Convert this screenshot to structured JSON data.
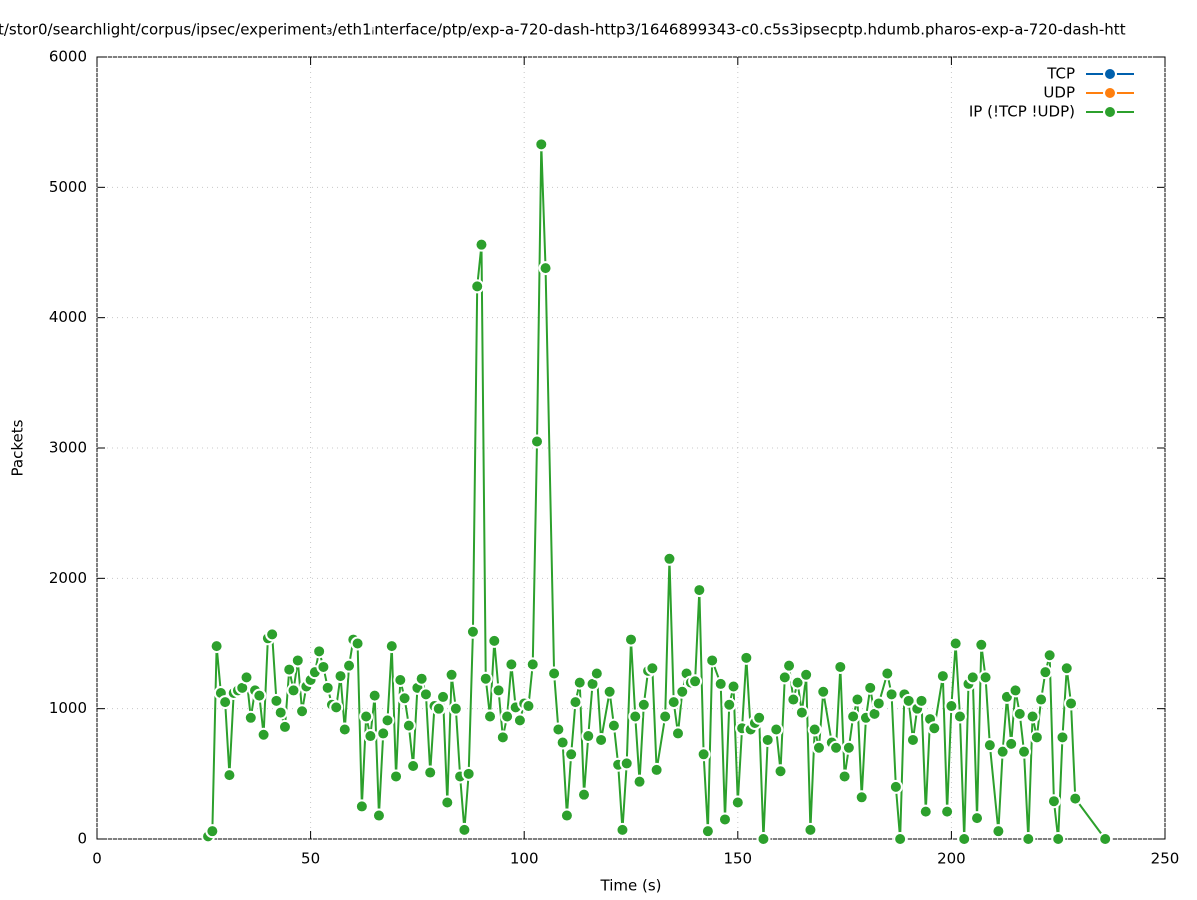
{
  "chart_data": {
    "type": "line",
    "title": "t/stor0/searchlight/corpus/ipsec/experiment₃/eth1ᵢnterface/ptp/exp-a-720-dash-http3/1646899343-c0.c5s3ipsecptp.hdumb.pharos-exp-a-720-dash-htt",
    "x_label": "Time (s)",
    "y_label": "Packets",
    "xlim": [
      0,
      250
    ],
    "xticks": [
      0,
      50,
      100,
      150,
      200,
      250
    ],
    "ylim": [
      0,
      6000
    ],
    "yticks": [
      0,
      1000,
      2000,
      3000,
      4000,
      5000,
      6000
    ],
    "grid": true,
    "legend": "top-right",
    "x": [
      26,
      27,
      28,
      29,
      30,
      31,
      32,
      33,
      34,
      35,
      36,
      37,
      38,
      39,
      40,
      41,
      42,
      43,
      44,
      45,
      46,
      47,
      48,
      49,
      50,
      51,
      52,
      53,
      54,
      55,
      56,
      57,
      58,
      59,
      60,
      61,
      62,
      63,
      64,
      65,
      66,
      67,
      68,
      69,
      70,
      71,
      72,
      73,
      74,
      75,
      76,
      77,
      78,
      79,
      80,
      81,
      82,
      83,
      84,
      85,
      86,
      87,
      88,
      89,
      90,
      91,
      92,
      93,
      94,
      95,
      96,
      97,
      98,
      99,
      100,
      101,
      102,
      103,
      104,
      105,
      107,
      108,
      109,
      110,
      111,
      112,
      113,
      114,
      115,
      116,
      117,
      118,
      120,
      121,
      122,
      123,
      124,
      125,
      126,
      127,
      128,
      129,
      130,
      131,
      133,
      134,
      135,
      136,
      137,
      138,
      139,
      140,
      141,
      142,
      143,
      144,
      146,
      147,
      148,
      149,
      150,
      151,
      152,
      153,
      154,
      155,
      156,
      157,
      159,
      160,
      161,
      162,
      163,
      164,
      165,
      166,
      167,
      168,
      169,
      170,
      172,
      173,
      174,
      175,
      176,
      177,
      178,
      179,
      180,
      181,
      182,
      183,
      185,
      186,
      187,
      188,
      189,
      190,
      191,
      192,
      193,
      194,
      195,
      196,
      198,
      199,
      200,
      201,
      202,
      203,
      204,
      205,
      206,
      207,
      208,
      209,
      211,
      212,
      213,
      214,
      215,
      216,
      217,
      218,
      219,
      220,
      221,
      222,
      223,
      224,
      225,
      226,
      227,
      228,
      229,
      236
    ],
    "series": [
      {
        "name": "TCP",
        "color": "#0060ad"
      },
      {
        "name": "UDP",
        "color": "#ff7f0e"
      },
      {
        "name": "IP (!TCP  !UDP)",
        "color": "#2ca02c",
        "values": [
          20,
          60,
          1480,
          1120,
          1050,
          490,
          1120,
          1140,
          1160,
          1240,
          930,
          1140,
          1100,
          800,
          1540,
          1570,
          1060,
          970,
          860,
          1300,
          1140,
          1370,
          980,
          1170,
          1220,
          1280,
          1440,
          1320,
          1160,
          1030,
          1010,
          1250,
          840,
          1330,
          1530,
          1500,
          250,
          940,
          790,
          1100,
          180,
          810,
          910,
          1480,
          480,
          1220,
          1080,
          870,
          560,
          1160,
          1230,
          1110,
          510,
          1020,
          1000,
          1090,
          280,
          1260,
          1000,
          480,
          70,
          500,
          1590,
          4240,
          4560,
          1230,
          940,
          1520,
          1140,
          780,
          940,
          1340,
          1010,
          910,
          1040,
          1020,
          1340,
          3050,
          5330,
          4380,
          1270,
          840,
          740,
          180,
          650,
          1050,
          1200,
          340,
          790,
          1190,
          1270,
          760,
          1130,
          870,
          570,
          70,
          580,
          1530,
          940,
          440,
          1030,
          1290,
          1310,
          530,
          940,
          2150,
          1050,
          810,
          1130,
          1270,
          1200,
          1210,
          1910,
          650,
          60,
          1370,
          1190,
          150,
          1030,
          1170,
          280,
          850,
          1390,
          840,
          890,
          930,
          0,
          760,
          840,
          520,
          1240,
          1330,
          1070,
          1200,
          970,
          1260,
          70,
          840,
          700,
          1130,
          740,
          700,
          1320,
          480,
          700,
          940,
          1070,
          320,
          930,
          1160,
          960,
          1040,
          1270,
          1110,
          400,
          0,
          1110,
          1060,
          760,
          1000,
          1060,
          210,
          920,
          850,
          1250,
          210,
          1020,
          1500,
          940,
          0,
          1190,
          1240,
          160,
          1490,
          1240,
          720,
          60,
          670,
          1090,
          730,
          1140,
          960,
          670,
          0,
          940,
          780,
          1070,
          1280,
          1410,
          290,
          0,
          780,
          1310,
          1040,
          310,
          0
        ]
      }
    ]
  }
}
